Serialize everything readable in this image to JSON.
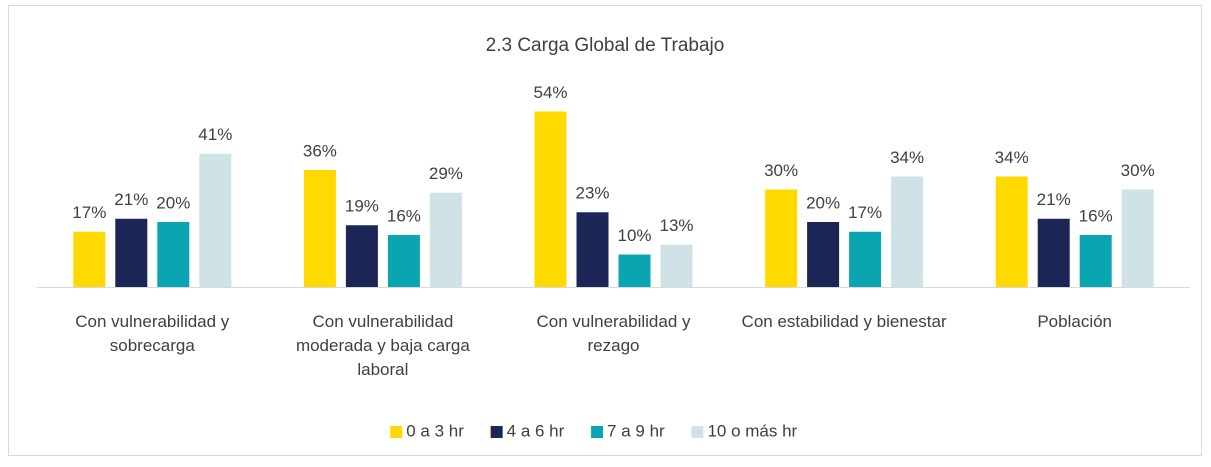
{
  "chart_data": {
    "type": "bar",
    "title": "2.3 Carga Global de Trabajo",
    "categories": [
      "Con vulnerabilidad y sobrecarga",
      "Con vulnerabilidad moderada y baja carga laboral",
      "Con vulnerabilidad y rezago",
      "Con estabilidad y bienestar",
      "Población"
    ],
    "series": [
      {
        "name": "0 a 3 hr",
        "color": "#ffd900",
        "values": [
          17,
          36,
          54,
          30,
          34
        ],
        "value_labels": [
          "17%",
          "36%",
          "54%",
          "30%",
          "34%"
        ]
      },
      {
        "name": "4 a 6 hr",
        "color": "#1b2656",
        "values": [
          21,
          19,
          23,
          20,
          21
        ],
        "value_labels": [
          "21%",
          "19%",
          "23%",
          "20%",
          "21%"
        ]
      },
      {
        "name": "7 a 9 hr",
        "color": "#0aa5b0",
        "values": [
          20,
          16,
          10,
          17,
          16
        ],
        "value_labels": [
          "20%",
          "16%",
          "10%",
          "17%",
          "16%"
        ]
      },
      {
        "name": "10 o más hr",
        "color": "#cfe2e6",
        "values": [
          41,
          29,
          13,
          34,
          30
        ],
        "value_labels": [
          "41%",
          "29%",
          "13%",
          "34%",
          "30%"
        ]
      }
    ],
    "legend": "bottom"
  }
}
